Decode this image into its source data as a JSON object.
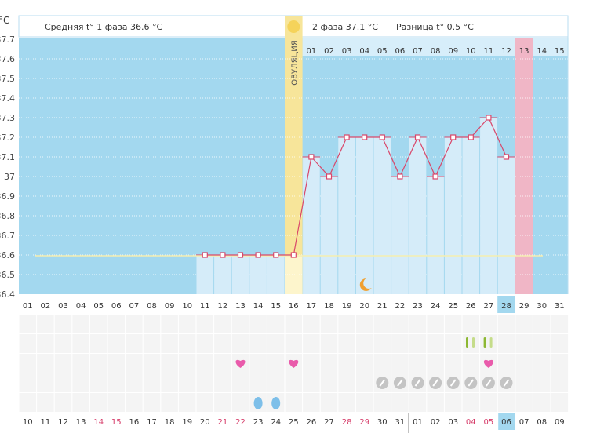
{
  "header": {
    "phase1_label": "Средняя t° 1 фаза 36.6 °C",
    "phase2_label": "2 фаза 37.1 °C",
    "diff_label": "Разница t° 0.5 °C",
    "unit": "°C",
    "ovulation_label": "ОВУЛЯЦИЯ"
  },
  "colors": {
    "chart_bg": "#a3d8ef",
    "bar": "#d5ecf9",
    "ovulation": "#f7e59a",
    "period": "#f0b6c6",
    "line": "#d9476a",
    "coverline": "#f5eeb0",
    "heart": "#e95bab",
    "drop": "#7dbfe9",
    "pill": "#c4c4c4",
    "green": "#8db833",
    "red_date": "#d63d6a"
  },
  "chart_data": {
    "type": "line",
    "title": "",
    "ylabel": "°C",
    "ylim": [
      36.4,
      37.7
    ],
    "yticks": [
      "37.7",
      "37.6",
      "37.5",
      "37.4",
      "37.3",
      "37.2",
      "37.1",
      "37",
      "36.9",
      "36.8",
      "36.7",
      "36.6",
      "36.5",
      "36.4"
    ],
    "cycle_days": [
      "01",
      "02",
      "03",
      "04",
      "05",
      "06",
      "07",
      "08",
      "09",
      "10",
      "11",
      "12",
      "13",
      "14",
      "15",
      "16",
      "17",
      "18",
      "19",
      "20",
      "21",
      "22",
      "23",
      "24",
      "25",
      "26",
      "27",
      "28",
      "29",
      "30",
      "31"
    ],
    "phase2_days": [
      "01",
      "02",
      "03",
      "04",
      "05",
      "06",
      "07",
      "08",
      "09",
      "10",
      "11",
      "12",
      "13",
      "14",
      "15"
    ],
    "dates": [
      "10",
      "11",
      "12",
      "13",
      "14",
      "15",
      "16",
      "17",
      "18",
      "19",
      "20",
      "21",
      "22",
      "23",
      "24",
      "25",
      "26",
      "27",
      "28",
      "29",
      "30",
      "31",
      "01",
      "02",
      "03",
      "04",
      "05",
      "06",
      "07",
      "08",
      "09"
    ],
    "red_dates": [
      5,
      6,
      12,
      13,
      19,
      20,
      26,
      27
    ],
    "today_index": 28,
    "ovulation_day": 16,
    "period_day": 29,
    "coverline": 36.6,
    "temperatures": [
      {
        "day": 11,
        "temp": 36.6
      },
      {
        "day": 12,
        "temp": 36.6
      },
      {
        "day": 13,
        "temp": 36.6
      },
      {
        "day": 14,
        "temp": 36.6
      },
      {
        "day": 15,
        "temp": 36.6
      },
      {
        "day": 16,
        "temp": 36.6
      },
      {
        "day": 17,
        "temp": 37.1
      },
      {
        "day": 18,
        "temp": 37.0
      },
      {
        "day": 19,
        "temp": 37.2
      },
      {
        "day": 20,
        "temp": 37.2
      },
      {
        "day": 21,
        "temp": 37.2
      },
      {
        "day": 22,
        "temp": 37.0
      },
      {
        "day": 23,
        "temp": 37.2
      },
      {
        "day": 24,
        "temp": 37.0
      },
      {
        "day": 25,
        "temp": 37.2
      },
      {
        "day": 26,
        "temp": 37.2
      },
      {
        "day": 27,
        "temp": 37.3
      },
      {
        "day": 28,
        "temp": 37.1
      }
    ],
    "moon_day": 20,
    "markers": {
      "tests": [
        26,
        27
      ],
      "hearts": [
        13,
        16,
        27
      ],
      "pills": [
        21,
        22,
        23,
        24,
        25,
        26,
        27,
        28
      ],
      "drops": [
        14,
        15
      ]
    }
  }
}
